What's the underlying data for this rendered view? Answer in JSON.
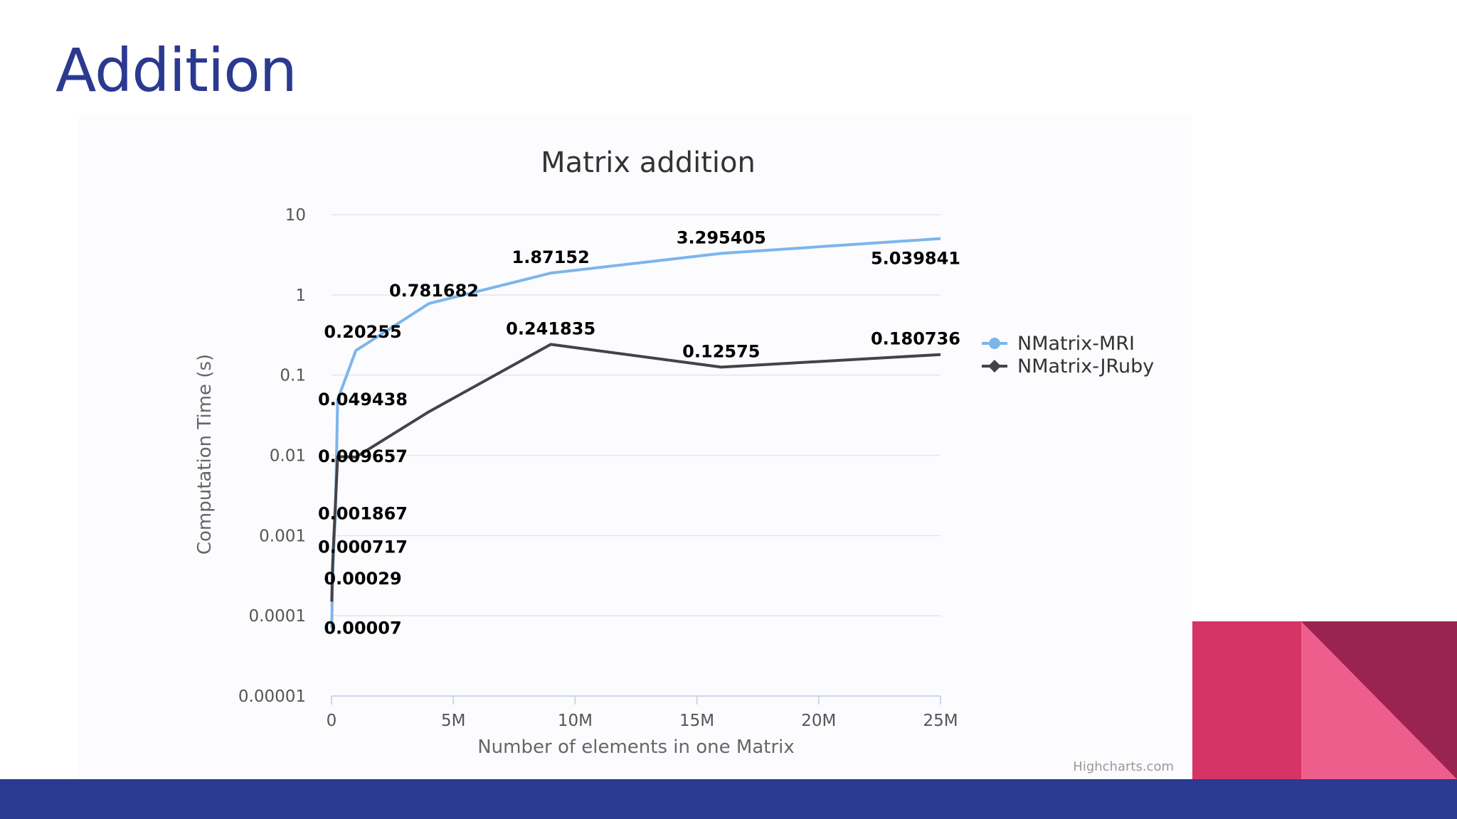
{
  "slide": {
    "title": "Addition"
  },
  "colors": {
    "title": "#2b3990",
    "footer": "#2b3990",
    "deco_left": "#d63466",
    "deco_light": "#ee5e8d",
    "deco_dark": "#9a2451",
    "series_mri": "#7cb5ec",
    "series_jruby": "#434348"
  },
  "chart_data": {
    "type": "line",
    "title": "Matrix addition",
    "xlabel": "Number of elements in one Matrix",
    "ylabel": "Computation Time (s)",
    "y_scale": "log",
    "ylim": [
      1e-05,
      10
    ],
    "xlim": [
      0,
      25000000
    ],
    "y_ticks": [
      "0.00001",
      "0.0001",
      "0.001",
      "0.01",
      "0.1",
      "1",
      "10"
    ],
    "x_ticks": [
      "0",
      "5M",
      "10M",
      "15M",
      "20M",
      "25M"
    ],
    "legend_position": "right",
    "credits": "Highcharts.com",
    "grid": true,
    "series": [
      {
        "name": "NMatrix-MRI",
        "color": "#7cb5ec",
        "points": [
          {
            "x": 10000,
            "y": 7e-05,
            "label": "0.00007"
          },
          {
            "x": 40000,
            "y": 0.00029,
            "label": "0.00029"
          },
          {
            "x": 90000,
            "y": 0.000717,
            "label": "0.000717"
          },
          {
            "x": 160000,
            "y": 0.001867,
            "label": "0.001867"
          },
          {
            "x": 250000,
            "y": 0.049438,
            "label": "0.049438"
          },
          {
            "x": 1000000,
            "y": 0.20255,
            "label": "0.20255"
          },
          {
            "x": 4000000,
            "y": 0.781682,
            "label": "0.781682"
          },
          {
            "x": 9000000,
            "y": 1.87152,
            "label": "1.87152"
          },
          {
            "x": 16000000,
            "y": 3.295405,
            "label": "3.295405"
          },
          {
            "x": 25000000,
            "y": 5.039841,
            "label": "5.039841"
          }
        ]
      },
      {
        "name": "NMatrix-JRuby",
        "color": "#434348",
        "points": [
          {
            "x": 10000,
            "y": 0.00015
          },
          {
            "x": 40000,
            "y": 0.0004
          },
          {
            "x": 90000,
            "y": 0.0009
          },
          {
            "x": 160000,
            "y": 0.0025
          },
          {
            "x": 250000,
            "y": 0.009657,
            "label": "0.009657"
          },
          {
            "x": 1000000,
            "y": 0.0095
          },
          {
            "x": 4000000,
            "y": 0.035
          },
          {
            "x": 9000000,
            "y": 0.241835,
            "label": "0.241835"
          },
          {
            "x": 16000000,
            "y": 0.12575,
            "label": "0.12575"
          },
          {
            "x": 25000000,
            "y": 0.180736,
            "label": "0.180736"
          }
        ]
      }
    ]
  }
}
